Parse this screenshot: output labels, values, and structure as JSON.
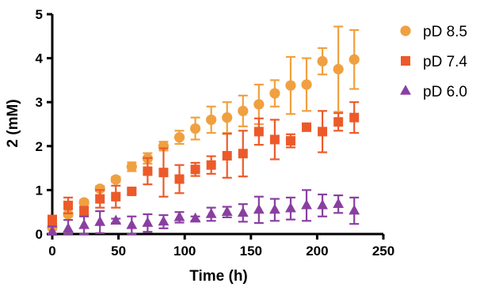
{
  "chart_data": {
    "type": "scatter",
    "xlabel": "Time (h)",
    "ylabel": "2 (mM)",
    "xlim": [
      0,
      250
    ],
    "ylim": [
      0,
      5
    ],
    "xticks": [
      0,
      50,
      100,
      150,
      200,
      250
    ],
    "yticks": [
      0,
      1,
      2,
      3,
      4,
      5
    ],
    "legend_position": "top-right",
    "series": [
      {
        "name": "pD 8.5",
        "color": "#f0a040",
        "marker": "circle",
        "x": [
          0,
          12,
          24,
          36,
          48,
          60,
          72,
          84,
          96,
          108,
          120,
          132,
          144,
          156,
          168,
          180,
          192,
          204,
          216,
          228
        ],
        "y": [
          0.15,
          0.45,
          0.72,
          1.03,
          1.24,
          1.53,
          1.72,
          2.0,
          2.2,
          2.4,
          2.6,
          2.65,
          2.8,
          2.95,
          3.2,
          3.38,
          3.4,
          3.93,
          3.75,
          3.97
        ],
        "err": [
          0.05,
          0.05,
          0.05,
          0.06,
          0.06,
          0.1,
          0.12,
          0.1,
          0.15,
          0.25,
          0.3,
          0.35,
          0.35,
          0.45,
          0.3,
          0.65,
          0.6,
          0.3,
          0.97,
          0.67
        ]
      },
      {
        "name": "pD 7.4",
        "color": "#ec5a2a",
        "marker": "square",
        "x": [
          0,
          12,
          24,
          36,
          48,
          60,
          72,
          84,
          96,
          108,
          120,
          132,
          144,
          156,
          168,
          180,
          192,
          204,
          216,
          228
        ],
        "y": [
          0.3,
          0.65,
          0.52,
          0.8,
          0.85,
          0.97,
          1.43,
          1.4,
          1.25,
          1.47,
          1.57,
          1.78,
          1.83,
          2.33,
          2.15,
          2.12,
          2.43,
          2.33,
          2.55,
          2.65
        ],
        "err": [
          0.12,
          0.18,
          0.1,
          0.2,
          0.25,
          0.05,
          0.3,
          0.55,
          0.32,
          0.15,
          0.2,
          0.5,
          0.52,
          0.3,
          0.45,
          0.15,
          0.05,
          0.47,
          0.2,
          0.35
        ]
      },
      {
        "name": "pD 6.0",
        "color": "#8a3fa0",
        "marker": "triangle",
        "x": [
          0,
          12,
          24,
          36,
          48,
          60,
          72,
          84,
          96,
          108,
          120,
          132,
          144,
          156,
          168,
          180,
          192,
          204,
          216,
          228
        ],
        "y": [
          0.05,
          0.12,
          0.2,
          0.27,
          0.3,
          0.2,
          0.25,
          0.28,
          0.38,
          0.35,
          0.45,
          0.5,
          0.48,
          0.55,
          0.55,
          0.58,
          0.65,
          0.65,
          0.68,
          0.53
        ],
        "err": [
          0.12,
          0.2,
          0.2,
          0.25,
          0.05,
          0.2,
          0.2,
          0.15,
          0.12,
          0.05,
          0.15,
          0.12,
          0.2,
          0.3,
          0.25,
          0.25,
          0.35,
          0.25,
          0.2,
          0.3
        ]
      }
    ]
  }
}
